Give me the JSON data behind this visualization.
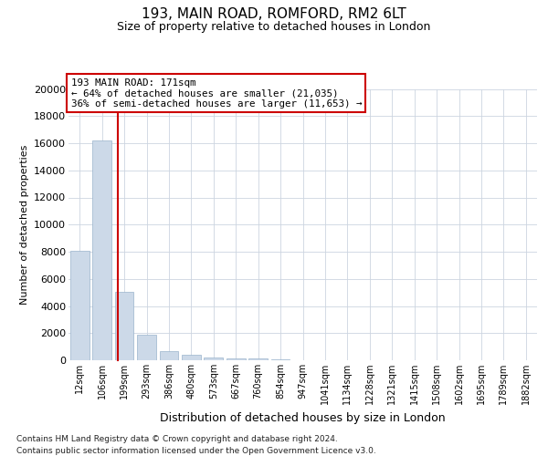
{
  "title_line1": "193, MAIN ROAD, ROMFORD, RM2 6LT",
  "title_line2": "Size of property relative to detached houses in London",
  "xlabel": "Distribution of detached houses by size in London",
  "ylabel": "Number of detached properties",
  "bar_color": "#ccd9e8",
  "bar_edge_color": "#99b3cc",
  "grid_color": "#ccd5e0",
  "vline_color": "#cc0000",
  "box_edge_color": "#cc0000",
  "annotation_line1": "193 MAIN ROAD: 171sqm",
  "annotation_line2": "← 64% of detached houses are smaller (21,035)",
  "annotation_line3": "36% of semi-detached houses are larger (11,653) →",
  "footnote1": "Contains HM Land Registry data © Crown copyright and database right 2024.",
  "footnote2": "Contains public sector information licensed under the Open Government Licence v3.0.",
  "categories": [
    "12sqm",
    "106sqm",
    "199sqm",
    "293sqm",
    "386sqm",
    "480sqm",
    "573sqm",
    "667sqm",
    "760sqm",
    "854sqm",
    "947sqm",
    "1041sqm",
    "1134sqm",
    "1228sqm",
    "1321sqm",
    "1415sqm",
    "1508sqm",
    "1602sqm",
    "1695sqm",
    "1789sqm",
    "1882sqm"
  ],
  "values": [
    8050,
    16200,
    5050,
    1850,
    680,
    380,
    190,
    140,
    110,
    80,
    0,
    0,
    0,
    0,
    0,
    0,
    0,
    0,
    0,
    0,
    0
  ],
  "ylim_max": 20000,
  "ytick_step": 2000,
  "bin_low_sqm": 106,
  "bin_high_sqm": 199,
  "bin_low_idx": 1,
  "property_sqm": 171
}
